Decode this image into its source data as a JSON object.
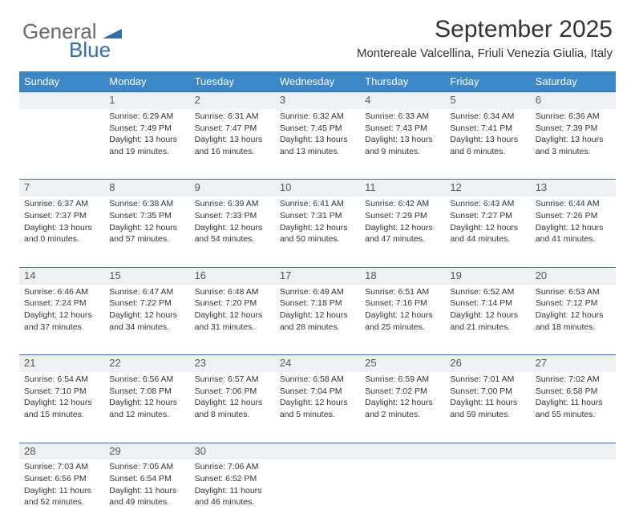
{
  "logo": {
    "general": "General",
    "blue": "Blue"
  },
  "title": "September 2025",
  "location": "Montereale Valcellina, Friuli Venezia Giulia, Italy",
  "colors": {
    "header_bg": "#3b87c8",
    "header_fg": "#ffffff",
    "daynum_bg": "#eef1f3",
    "border": "#3b6ea5",
    "text": "#333333",
    "logo_gray": "#6a6a6a",
    "logo_blue": "#2f6fb0"
  },
  "day_headers": [
    "Sunday",
    "Monday",
    "Tuesday",
    "Wednesday",
    "Thursday",
    "Friday",
    "Saturday"
  ],
  "weeks": [
    {
      "nums": [
        "",
        "1",
        "2",
        "3",
        "4",
        "5",
        "6"
      ],
      "cells": [
        null,
        {
          "sunrise": "Sunrise: 6:29 AM",
          "sunset": "Sunset: 7:49 PM",
          "day1": "Daylight: 13 hours",
          "day2": "and 19 minutes."
        },
        {
          "sunrise": "Sunrise: 6:31 AM",
          "sunset": "Sunset: 7:47 PM",
          "day1": "Daylight: 13 hours",
          "day2": "and 16 minutes."
        },
        {
          "sunrise": "Sunrise: 6:32 AM",
          "sunset": "Sunset: 7:45 PM",
          "day1": "Daylight: 13 hours",
          "day2": "and 13 minutes."
        },
        {
          "sunrise": "Sunrise: 6:33 AM",
          "sunset": "Sunset: 7:43 PM",
          "day1": "Daylight: 13 hours",
          "day2": "and 9 minutes."
        },
        {
          "sunrise": "Sunrise: 6:34 AM",
          "sunset": "Sunset: 7:41 PM",
          "day1": "Daylight: 13 hours",
          "day2": "and 6 minutes."
        },
        {
          "sunrise": "Sunrise: 6:36 AM",
          "sunset": "Sunset: 7:39 PM",
          "day1": "Daylight: 13 hours",
          "day2": "and 3 minutes."
        }
      ]
    },
    {
      "nums": [
        "7",
        "8",
        "9",
        "10",
        "11",
        "12",
        "13"
      ],
      "cells": [
        {
          "sunrise": "Sunrise: 6:37 AM",
          "sunset": "Sunset: 7:37 PM",
          "day1": "Daylight: 13 hours",
          "day2": "and 0 minutes."
        },
        {
          "sunrise": "Sunrise: 6:38 AM",
          "sunset": "Sunset: 7:35 PM",
          "day1": "Daylight: 12 hours",
          "day2": "and 57 minutes."
        },
        {
          "sunrise": "Sunrise: 6:39 AM",
          "sunset": "Sunset: 7:33 PM",
          "day1": "Daylight: 12 hours",
          "day2": "and 54 minutes."
        },
        {
          "sunrise": "Sunrise: 6:41 AM",
          "sunset": "Sunset: 7:31 PM",
          "day1": "Daylight: 12 hours",
          "day2": "and 50 minutes."
        },
        {
          "sunrise": "Sunrise: 6:42 AM",
          "sunset": "Sunset: 7:29 PM",
          "day1": "Daylight: 12 hours",
          "day2": "and 47 minutes."
        },
        {
          "sunrise": "Sunrise: 6:43 AM",
          "sunset": "Sunset: 7:27 PM",
          "day1": "Daylight: 12 hours",
          "day2": "and 44 minutes."
        },
        {
          "sunrise": "Sunrise: 6:44 AM",
          "sunset": "Sunset: 7:26 PM",
          "day1": "Daylight: 12 hours",
          "day2": "and 41 minutes."
        }
      ]
    },
    {
      "nums": [
        "14",
        "15",
        "16",
        "17",
        "18",
        "19",
        "20"
      ],
      "cells": [
        {
          "sunrise": "Sunrise: 6:46 AM",
          "sunset": "Sunset: 7:24 PM",
          "day1": "Daylight: 12 hours",
          "day2": "and 37 minutes."
        },
        {
          "sunrise": "Sunrise: 6:47 AM",
          "sunset": "Sunset: 7:22 PM",
          "day1": "Daylight: 12 hours",
          "day2": "and 34 minutes."
        },
        {
          "sunrise": "Sunrise: 6:48 AM",
          "sunset": "Sunset: 7:20 PM",
          "day1": "Daylight: 12 hours",
          "day2": "and 31 minutes."
        },
        {
          "sunrise": "Sunrise: 6:49 AM",
          "sunset": "Sunset: 7:18 PM",
          "day1": "Daylight: 12 hours",
          "day2": "and 28 minutes."
        },
        {
          "sunrise": "Sunrise: 6:51 AM",
          "sunset": "Sunset: 7:16 PM",
          "day1": "Daylight: 12 hours",
          "day2": "and 25 minutes."
        },
        {
          "sunrise": "Sunrise: 6:52 AM",
          "sunset": "Sunset: 7:14 PM",
          "day1": "Daylight: 12 hours",
          "day2": "and 21 minutes."
        },
        {
          "sunrise": "Sunrise: 6:53 AM",
          "sunset": "Sunset: 7:12 PM",
          "day1": "Daylight: 12 hours",
          "day2": "and 18 minutes."
        }
      ]
    },
    {
      "nums": [
        "21",
        "22",
        "23",
        "24",
        "25",
        "26",
        "27"
      ],
      "cells": [
        {
          "sunrise": "Sunrise: 6:54 AM",
          "sunset": "Sunset: 7:10 PM",
          "day1": "Daylight: 12 hours",
          "day2": "and 15 minutes."
        },
        {
          "sunrise": "Sunrise: 6:56 AM",
          "sunset": "Sunset: 7:08 PM",
          "day1": "Daylight: 12 hours",
          "day2": "and 12 minutes."
        },
        {
          "sunrise": "Sunrise: 6:57 AM",
          "sunset": "Sunset: 7:06 PM",
          "day1": "Daylight: 12 hours",
          "day2": "and 8 minutes."
        },
        {
          "sunrise": "Sunrise: 6:58 AM",
          "sunset": "Sunset: 7:04 PM",
          "day1": "Daylight: 12 hours",
          "day2": "and 5 minutes."
        },
        {
          "sunrise": "Sunrise: 6:59 AM",
          "sunset": "Sunset: 7:02 PM",
          "day1": "Daylight: 12 hours",
          "day2": "and 2 minutes."
        },
        {
          "sunrise": "Sunrise: 7:01 AM",
          "sunset": "Sunset: 7:00 PM",
          "day1": "Daylight: 11 hours",
          "day2": "and 59 minutes."
        },
        {
          "sunrise": "Sunrise: 7:02 AM",
          "sunset": "Sunset: 6:58 PM",
          "day1": "Daylight: 11 hours",
          "day2": "and 55 minutes."
        }
      ]
    },
    {
      "nums": [
        "28",
        "29",
        "30",
        "",
        "",
        "",
        ""
      ],
      "cells": [
        {
          "sunrise": "Sunrise: 7:03 AM",
          "sunset": "Sunset: 6:56 PM",
          "day1": "Daylight: 11 hours",
          "day2": "and 52 minutes."
        },
        {
          "sunrise": "Sunrise: 7:05 AM",
          "sunset": "Sunset: 6:54 PM",
          "day1": "Daylight: 11 hours",
          "day2": "and 49 minutes."
        },
        {
          "sunrise": "Sunrise: 7:06 AM",
          "sunset": "Sunset: 6:52 PM",
          "day1": "Daylight: 11 hours",
          "day2": "and 46 minutes."
        },
        null,
        null,
        null,
        null
      ]
    }
  ]
}
